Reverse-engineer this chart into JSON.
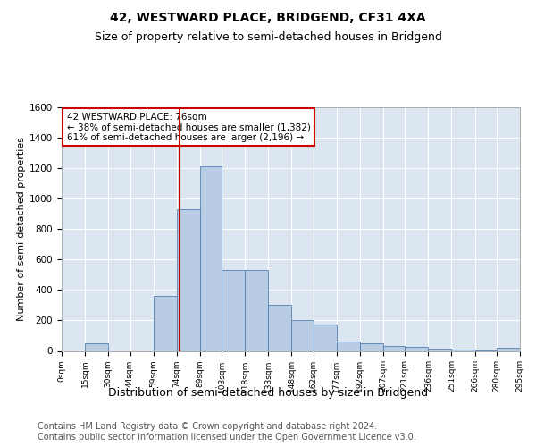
{
  "title": "42, WESTWARD PLACE, BRIDGEND, CF31 4XA",
  "subtitle": "Size of property relative to semi-detached houses in Bridgend",
  "xlabel": "Distribution of semi-detached houses by size in Bridgend",
  "ylabel": "Number of semi-detached properties",
  "bin_edges": [
    0,
    15,
    30,
    44,
    59,
    74,
    89,
    103,
    118,
    133,
    148,
    162,
    177,
    192,
    207,
    221,
    236,
    251,
    266,
    280,
    295
  ],
  "bar_heights": [
    0,
    50,
    0,
    0,
    360,
    930,
    1210,
    530,
    530,
    305,
    200,
    175,
    60,
    50,
    35,
    25,
    15,
    10,
    5,
    20
  ],
  "bar_color": "#b8cce4",
  "bar_edge_color": "#5580b0",
  "property_size": 76,
  "red_line_color": "#cc0000",
  "annotation_text": "42 WESTWARD PLACE: 76sqm\n← 38% of semi-detached houses are smaller (1,382)\n61% of semi-detached houses are larger (2,196) →",
  "annotation_box_color": "#ffffff",
  "annotation_box_edge": "#cc0000",
  "ylim": [
    0,
    1600
  ],
  "yticks": [
    0,
    200,
    400,
    600,
    800,
    1000,
    1200,
    1400,
    1600
  ],
  "tick_labels": [
    "0sqm",
    "15sqm",
    "30sqm",
    "44sqm",
    "59sqm",
    "74sqm",
    "89sqm",
    "103sqm",
    "118sqm",
    "133sqm",
    "148sqm",
    "162sqm",
    "177sqm",
    "192sqm",
    "207sqm",
    "221sqm",
    "236sqm",
    "251sqm",
    "266sqm",
    "280sqm",
    "295sqm"
  ],
  "footer_text": "Contains HM Land Registry data © Crown copyright and database right 2024.\nContains public sector information licensed under the Open Government Licence v3.0.",
  "plot_bg_color": "#dce6f1",
  "fig_bg_color": "#ffffff",
  "grid_color": "#ffffff",
  "title_fontsize": 10,
  "subtitle_fontsize": 9,
  "xlabel_fontsize": 9,
  "ylabel_fontsize": 8,
  "footer_fontsize": 7
}
